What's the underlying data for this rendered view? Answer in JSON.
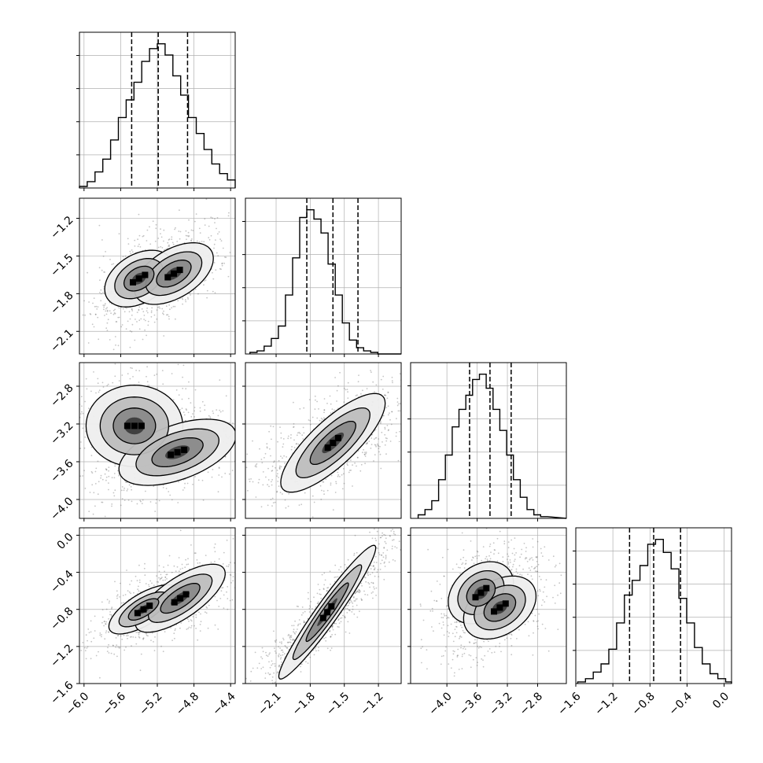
{
  "chart_data": {
    "type": "corner",
    "grid": true,
    "colors": {
      "line": "#000000",
      "grid": "#b0b0b0",
      "points": "#5a5a5a"
    },
    "parameters": [
      {
        "xlim": [
          -6.05,
          -4.35
        ],
        "ticks": [
          -6.0,
          -5.6,
          -5.2,
          -4.8,
          -4.4
        ],
        "tick_labels": [
          "−6.0",
          "−5.6",
          "−5.2",
          "−4.8",
          "−4.4"
        ],
        "quantiles": [
          -5.48,
          -5.19,
          -4.87
        ],
        "hist_edges_start": -6.05,
        "hist_bin_width": 0.085,
        "histogram": [
          1,
          4,
          10,
          18,
          30,
          44,
          55,
          66,
          79,
          87,
          90,
          83,
          70,
          58,
          44,
          34,
          24,
          15,
          9,
          5,
          1
        ]
      },
      {
        "xlim": [
          -2.37,
          -1.0
        ],
        "ticks": [
          -2.1,
          -1.8,
          -1.5,
          -1.2
        ],
        "tick_labels": [
          "−2.1",
          "−1.8",
          "−1.5",
          "−1.2"
        ],
        "quantiles": [
          -1.83,
          -1.6,
          -1.38
        ],
        "hist_edges_start": -2.33,
        "hist_bin_width": 0.0625,
        "histogram": [
          1,
          2,
          5,
          10,
          18,
          38,
          62,
          88,
          93,
          87,
          78,
          58,
          38,
          20,
          9,
          4,
          2,
          1,
          0,
          0
        ]
      },
      {
        "xlim": [
          -4.48,
          -2.42
        ],
        "ticks": [
          -4.0,
          -3.6,
          -3.2,
          -2.8
        ],
        "tick_labels": [
          "−4.0",
          "−3.6",
          "−3.2",
          "−2.8"
        ],
        "quantiles": [
          -3.7,
          -3.43,
          -3.15
        ],
        "hist_edges_start": -4.38,
        "hist_bin_width": 0.09,
        "histogram": [
          2,
          5,
          10,
          22,
          36,
          52,
          62,
          70,
          79,
          82,
          74,
          62,
          50,
          36,
          22,
          12,
          5,
          2,
          1
        ]
      },
      {
        "ylim": [
          -1.6,
          0.08
        ],
        "xlim": [
          -1.6,
          0.08
        ],
        "ticks": [
          -1.6,
          -1.2,
          -0.8,
          -0.4,
          0.0
        ],
        "tick_labels": [
          "−1.6",
          "−1.2",
          "−0.8",
          "−0.4",
          "0.0"
        ],
        "quantiles": [
          -1.02,
          -0.76,
          -0.47
        ],
        "hist_edges_start": -1.58,
        "hist_bin_width": 0.084,
        "histogram": [
          1,
          3,
          7,
          12,
          21,
          37,
          54,
          63,
          72,
          85,
          88,
          80,
          70,
          52,
          37,
          22,
          12,
          6,
          3,
          1
        ]
      }
    ],
    "y_axes": [
      null,
      {
        "ylim": [
          -2.28,
          -1.04
        ],
        "ticks": [
          -2.1,
          -1.8,
          -1.5,
          -1.2
        ],
        "tick_labels": [
          "−2.1",
          "−1.8",
          "−1.5",
          "−1.2"
        ]
      },
      {
        "ylim": [
          -4.2,
          -2.55
        ],
        "ticks": [
          -4.0,
          -3.6,
          -3.2,
          -2.8
        ],
        "tick_labels": [
          "−4.0",
          "−3.6",
          "−3.2",
          "−2.8"
        ]
      },
      {
        "ylim": [
          -1.6,
          0.08
        ],
        "ticks": [
          -1.6,
          -1.2,
          -0.8,
          -0.4,
          0.0
        ],
        "tick_labels": [
          "−1.6",
          "−1.2",
          "−0.8",
          "−0.4",
          "0.0"
        ]
      }
    ]
  }
}
